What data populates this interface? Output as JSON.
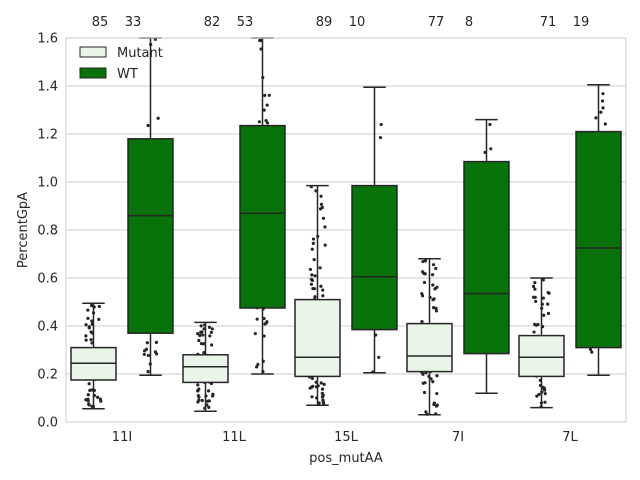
{
  "chart_data": {
    "type": "box",
    "xlabel": "pos_mutAA",
    "ylabel": "PercentGpA",
    "ylim": [
      0,
      1.6
    ],
    "yticks": [
      "0.0",
      "0.2",
      "0.4",
      "0.6",
      "0.8",
      "1.0",
      "1.2",
      "1.4",
      "1.6"
    ],
    "grid": "horizontal",
    "legend_position": "top-left",
    "categories": [
      "11I",
      "11L",
      "15L",
      "7I",
      "7L"
    ],
    "series": [
      {
        "name": "Mutant",
        "color": "#e9f5e9",
        "counts": [
          "85",
          "82",
          "89",
          "77",
          "71"
        ],
        "boxes": [
          {
            "whislo": 0.055,
            "q1": 0.175,
            "med": 0.245,
            "q3": 0.31,
            "whishi": 0.495
          },
          {
            "whislo": 0.045,
            "q1": 0.165,
            "med": 0.23,
            "q3": 0.28,
            "whishi": 0.415
          },
          {
            "whislo": 0.07,
            "q1": 0.19,
            "med": 0.27,
            "q3": 0.51,
            "whishi": 0.985
          },
          {
            "whislo": 0.03,
            "q1": 0.21,
            "med": 0.275,
            "q3": 0.41,
            "whishi": 0.68
          },
          {
            "whislo": 0.06,
            "q1": 0.19,
            "med": 0.27,
            "q3": 0.36,
            "whishi": 0.6
          }
        ]
      },
      {
        "name": "WT",
        "color": "#0a720a",
        "counts": [
          "33",
          "53",
          "10",
          "8",
          "19"
        ],
        "boxes": [
          {
            "whislo": 0.195,
            "q1": 0.37,
            "med": 0.86,
            "q3": 1.18,
            "whishi": 1.6
          },
          {
            "whislo": 0.2,
            "q1": 0.475,
            "med": 0.87,
            "q3": 1.235,
            "whishi": 1.6
          },
          {
            "whislo": 0.205,
            "q1": 0.385,
            "med": 0.605,
            "q3": 0.985,
            "whishi": 1.395
          },
          {
            "whislo": 0.12,
            "q1": 0.285,
            "med": 0.535,
            "q3": 1.085,
            "whishi": 1.26
          },
          {
            "whislo": 0.195,
            "q1": 0.31,
            "med": 0.725,
            "q3": 1.21,
            "whishi": 1.405
          }
        ]
      }
    ]
  }
}
